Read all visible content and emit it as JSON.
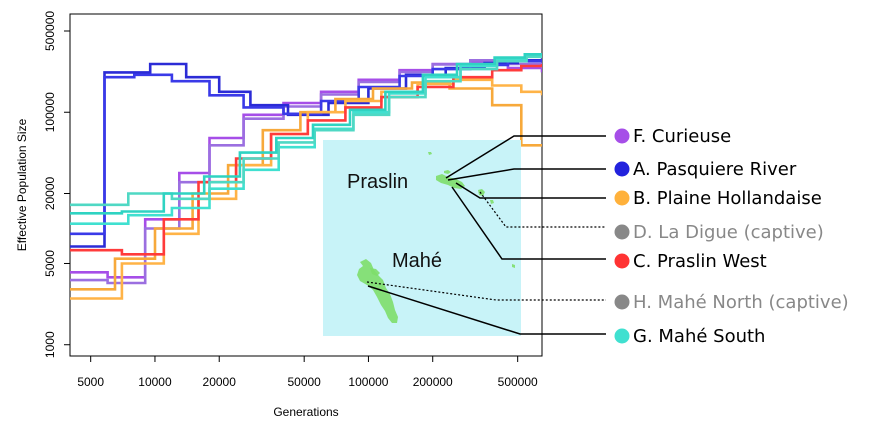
{
  "chart_data": {
    "type": "line",
    "step": true,
    "title": "",
    "xlabel": "Generations",
    "ylabel": "Effective Population Size",
    "x_scale": "log",
    "y_scale": "log",
    "xlim": [
      4000,
      650000
    ],
    "ylim": [
      800,
      700000
    ],
    "x_ticks": [
      5000,
      10000,
      20000,
      50000,
      100000,
      200000,
      500000
    ],
    "x_tick_labels": [
      "5000",
      "10000",
      "20000",
      "50000",
      "100000",
      "200000",
      "500000"
    ],
    "y_ticks": [
      1000,
      5000,
      20000,
      100000,
      500000
    ],
    "y_tick_labels": [
      "1000",
      "5000",
      "20000",
      "100000",
      "500000"
    ],
    "series": [
      {
        "name": "F. Curieuse",
        "color": "#a64ee8",
        "x": [
          4000,
          6000,
          9000,
          13000,
          18000,
          26000,
          40000,
          60000,
          90000,
          140000,
          200000,
          300000,
          450000,
          650000
        ],
        "y": [
          4200,
          3800,
          12000,
          30000,
          60000,
          95000,
          120000,
          150000,
          190000,
          230000,
          260000,
          270000,
          240000,
          220000
        ]
      },
      {
        "name": "F. Curieuse",
        "color": "#9b6fe0",
        "x": [
          4000,
          6000,
          9000,
          13000,
          18000,
          26000,
          40000,
          60000,
          90000,
          140000,
          200000,
          300000,
          450000,
          650000
        ],
        "y": [
          3600,
          3400,
          10000,
          25000,
          52000,
          88000,
          112000,
          142000,
          182000,
          222000,
          258000,
          280000,
          260000,
          240000
        ]
      },
      {
        "name": "A. Pasquiere River",
        "color": "#2b2bd6",
        "x": [
          4000,
          5800,
          9500,
          14000,
          20000,
          28000,
          42000,
          65000,
          100000,
          150000,
          230000,
          350000,
          500000,
          650000
        ],
        "y": [
          7000,
          220000,
          260000,
          200000,
          150000,
          115000,
          95000,
          120000,
          160000,
          210000,
          240000,
          265000,
          280000,
          290000
        ]
      },
      {
        "name": "A. Pasquiere River",
        "color": "#3a3ae8",
        "x": [
          4000,
          5800,
          8000,
          12000,
          18000,
          26000,
          40000,
          60000,
          90000,
          140000,
          200000,
          300000,
          450000,
          650000
        ],
        "y": [
          9000,
          200000,
          210000,
          185000,
          140000,
          110000,
          97000,
          125000,
          165000,
          205000,
          235000,
          255000,
          275000,
          285000
        ]
      },
      {
        "name": "B. Plaine Hollandaise",
        "color": "#f7a93b",
        "x": [
          4000,
          6500,
          10000,
          15000,
          22000,
          32000,
          48000,
          70000,
          105000,
          160000,
          240000,
          380000,
          520000,
          650000
        ],
        "y": [
          3000,
          5500,
          10000,
          20000,
          35000,
          70000,
          100000,
          130000,
          160000,
          180000,
          160000,
          115000,
          52000,
          52000
        ]
      },
      {
        "name": "B. Plaine Hollandaise",
        "color": "#ffb347",
        "x": [
          4000,
          7000,
          11000,
          16000,
          24000,
          35000,
          52000,
          78000,
          115000,
          170000,
          250000,
          380000,
          520000,
          650000
        ],
        "y": [
          2500,
          5000,
          9000,
          18000,
          35000,
          65000,
          100000,
          125000,
          150000,
          175000,
          190000,
          170000,
          150000,
          140000
        ]
      },
      {
        "name": "C. Praslin West",
        "color": "#ff3b3b",
        "x": [
          4000,
          7000,
          11000,
          16000,
          24000,
          35000,
          52000,
          78000,
          115000,
          170000,
          250000,
          380000,
          520000,
          650000
        ],
        "y": [
          6500,
          6000,
          12000,
          25000,
          40000,
          65000,
          85000,
          110000,
          135000,
          165000,
          200000,
          230000,
          250000,
          260000
        ]
      },
      {
        "name": "G. Mahé South",
        "color": "#40e0d0",
        "x": [
          4000,
          7500,
          12000,
          18000,
          26000,
          38000,
          56000,
          85000,
          125000,
          185000,
          270000,
          400000,
          550000,
          650000
        ],
        "y": [
          11000,
          13000,
          15000,
          22000,
          32000,
          50000,
          72000,
          100000,
          145000,
          200000,
          250000,
          285000,
          305000,
          310000
        ]
      },
      {
        "name": "G. Mahé South",
        "color": "#4fd8c4",
        "x": [
          4000,
          7500,
          12000,
          18000,
          26000,
          38000,
          56000,
          85000,
          125000,
          185000,
          270000,
          400000,
          550000,
          650000
        ],
        "y": [
          16000,
          20000,
          18000,
          25000,
          40000,
          55000,
          70000,
          95000,
          135000,
          185000,
          235000,
          275000,
          300000,
          305000
        ]
      },
      {
        "name": "G. Mahé South",
        "color": "#2fd3c2",
        "x": [
          4000,
          7000,
          11000,
          17000,
          25000,
          37000,
          55000,
          82000,
          120000,
          180000,
          260000,
          390000,
          540000,
          650000
        ],
        "y": [
          13500,
          14000,
          20000,
          28000,
          45000,
          60000,
          78000,
          105000,
          150000,
          210000,
          260000,
          295000,
          315000,
          315000
        ]
      }
    ],
    "legend": [
      {
        "label": "F. Curieuse",
        "dot_color": "#a64ee8",
        "text_color": "#000000"
      },
      {
        "label": "A. Pasquiere River",
        "dot_color": "#2222dd",
        "text_color": "#000000"
      },
      {
        "label": "B. Plaine Hollandaise",
        "dot_color": "#ffb13b",
        "text_color": "#000000"
      },
      {
        "label": "D. La Digue (captive)",
        "dot_color": "#888888",
        "text_color": "#888888"
      },
      {
        "label": "C. Praslin West",
        "dot_color": "#ff3333",
        "text_color": "#000000"
      },
      {
        "label": "H. Mahé North (captive)",
        "dot_color": "#888888",
        "text_color": "#888888"
      },
      {
        "label": "G. Mahé South",
        "dot_color": "#40e0d0",
        "text_color": "#000000"
      }
    ],
    "map": {
      "background": "#c8f3f8",
      "labels": [
        "Praslin",
        "Mahé"
      ],
      "island_color": "#7ede6a"
    }
  }
}
